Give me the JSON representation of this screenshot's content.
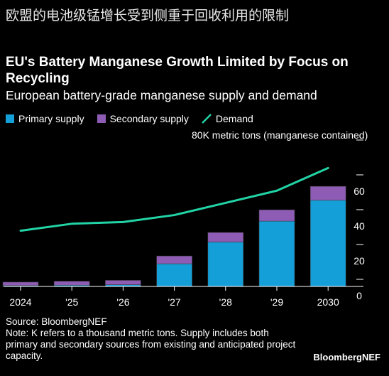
{
  "header_cn": "欧盟的电池级锰增长受到侧重于回收利用的限制",
  "colors": {
    "primary": "#159fd9",
    "secondary": "#8e5cb5",
    "demand": "#22d3a6",
    "background": "#000000"
  },
  "legend": {
    "primary": "Primary supply",
    "secondary": "Secondary supply",
    "demand": "Demand"
  },
  "source": "Source: BloombergNEF",
  "note": "Note: K refers to a thousand metric tons. Supply includes both primary and secondary sources from existing and anticipated project capacity.",
  "brand": "BloombergNEF",
  "chart_data": {
    "type": "bar",
    "title": "EU's Battery Manganese Growth Limited by Focus on Recycling",
    "subtitle": "European battery-grade manganese supply and demand",
    "unit_label": "80K metric tons (manganese contained)",
    "categories": [
      "2024",
      "'25",
      "'26",
      "'27",
      "'28",
      "'29",
      "2030"
    ],
    "stacked": true,
    "series": [
      {
        "name": "Primary supply",
        "kind": "bar",
        "values": [
          0.5,
          0.7,
          1.0,
          13,
          25.5,
          37.5,
          49.5
        ]
      },
      {
        "name": "Secondary supply",
        "kind": "bar",
        "values": [
          2.0,
          2.3,
          2.5,
          4.5,
          5.5,
          6.5,
          8.0
        ]
      },
      {
        "name": "Demand",
        "kind": "line",
        "values": [
          32,
          36,
          37,
          41,
          48,
          55,
          68
        ]
      }
    ],
    "yticks": [
      0,
      20,
      40,
      60,
      80
    ],
    "ylim": [
      0,
      80
    ],
    "y_axis_side": "right",
    "grid": false
  }
}
